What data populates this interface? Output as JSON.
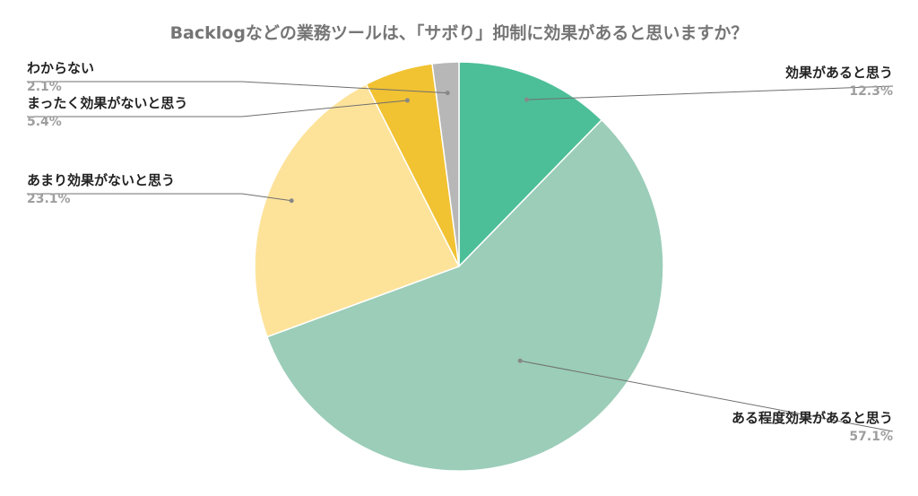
{
  "chart_data": {
    "type": "pie",
    "title": "Backlogなどの業務ツールは、「サボり」抑制に効果があると思いますか？",
    "start_angle_deg": 0,
    "direction": "clockwise",
    "slices": [
      {
        "label": "効果があると思う",
        "value": 12.3,
        "percent_text": "12.3%",
        "color": "#4dbf98",
        "label_side": "right"
      },
      {
        "label": "ある程度効果があると思う",
        "value": 57.1,
        "percent_text": "57.1%",
        "color": "#9bcdb8",
        "label_side": "right"
      },
      {
        "label": "あまり効果がないと思う",
        "value": 23.1,
        "percent_text": "23.1%",
        "color": "#fde39a",
        "label_side": "left"
      },
      {
        "label": "まったく効果がないと思う",
        "value": 5.4,
        "percent_text": "5.4%",
        "color": "#f1c232",
        "label_side": "left"
      },
      {
        "label": "わからない",
        "value": 2.1,
        "percent_text": "2.1%",
        "color": "#b7b7b7",
        "label_side": "left"
      }
    ],
    "leader_line_color": "#6f6f6f"
  }
}
